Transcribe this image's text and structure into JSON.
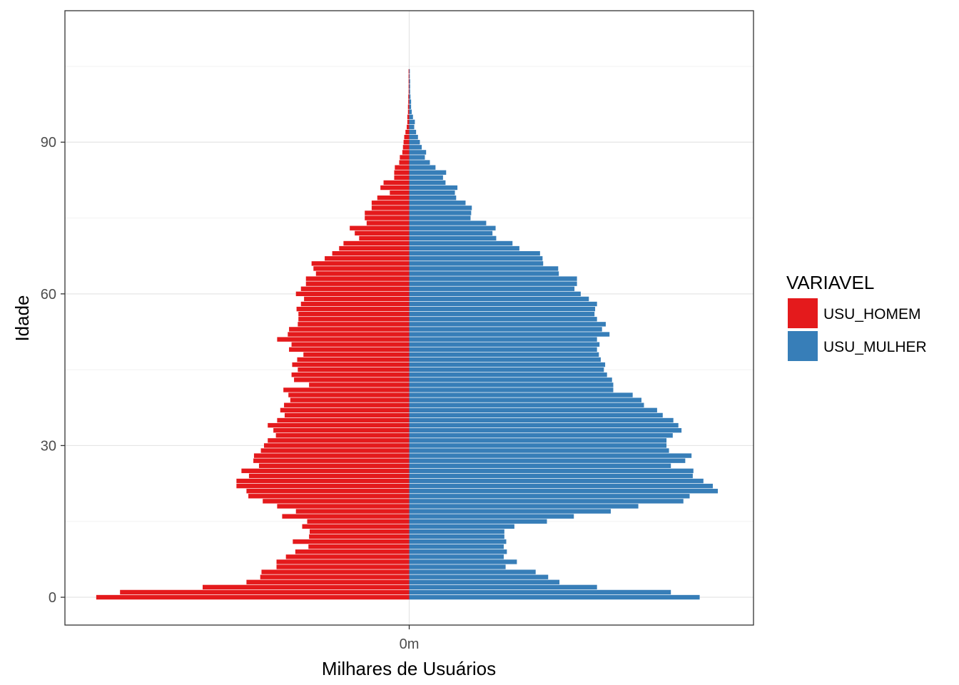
{
  "chart_data": {
    "type": "bar",
    "orientation": "horizontal",
    "layout": "population-pyramid",
    "xlabel": "Milhares de Usuários",
    "ylabel": "Idade",
    "x_tick_labels": [
      "0m"
    ],
    "y_ticks": [
      0,
      30,
      60,
      90
    ],
    "ylim": [
      -5.5,
      116
    ],
    "xlim": [
      -1.1,
      1.1
    ],
    "grid": true,
    "legend": {
      "title": "VARIAVEL",
      "position": "right"
    },
    "ages": [
      0,
      1,
      2,
      3,
      4,
      5,
      6,
      7,
      8,
      9,
      10,
      11,
      12,
      13,
      14,
      15,
      16,
      17,
      18,
      19,
      20,
      21,
      22,
      23,
      24,
      25,
      26,
      27,
      28,
      29,
      30,
      31,
      32,
      33,
      34,
      35,
      36,
      37,
      38,
      39,
      40,
      41,
      42,
      43,
      44,
      45,
      46,
      47,
      48,
      49,
      50,
      51,
      52,
      53,
      54,
      55,
      56,
      57,
      58,
      59,
      60,
      61,
      62,
      63,
      64,
      65,
      66,
      67,
      68,
      69,
      70,
      71,
      72,
      73,
      74,
      75,
      76,
      77,
      78,
      79,
      80,
      81,
      82,
      83,
      84,
      85,
      86,
      87,
      88,
      89,
      90,
      91,
      92,
      93,
      94,
      95,
      96,
      97,
      98,
      99,
      100,
      101,
      102,
      103,
      104,
      105,
      106,
      107,
      108
    ],
    "series": [
      {
        "name": "USU_HOMEM",
        "color": "#E41A1C",
        "values": [
          1.0,
          0.924,
          0.66,
          0.52,
          0.476,
          0.472,
          0.424,
          0.424,
          0.394,
          0.364,
          0.322,
          0.372,
          0.32,
          0.318,
          0.342,
          0.326,
          0.406,
          0.362,
          0.422,
          0.468,
          0.514,
          0.52,
          0.552,
          0.552,
          0.512,
          0.536,
          0.48,
          0.498,
          0.496,
          0.474,
          0.464,
          0.452,
          0.426,
          0.434,
          0.452,
          0.422,
          0.398,
          0.412,
          0.4,
          0.38,
          0.386,
          0.402,
          0.32,
          0.368,
          0.376,
          0.356,
          0.374,
          0.358,
          0.338,
          0.384,
          0.376,
          0.422,
          0.388,
          0.384,
          0.356,
          0.354,
          0.354,
          0.36,
          0.346,
          0.336,
          0.362,
          0.346,
          0.33,
          0.33,
          0.298,
          0.306,
          0.312,
          0.27,
          0.246,
          0.224,
          0.21,
          0.16,
          0.174,
          0.19,
          0.136,
          0.142,
          0.142,
          0.12,
          0.12,
          0.102,
          0.062,
          0.092,
          0.082,
          0.048,
          0.048,
          0.046,
          0.032,
          0.03,
          0.022,
          0.02,
          0.018,
          0.016,
          0.012,
          0.008,
          0.006,
          0.006,
          0.004,
          0.004,
          0.003,
          0.003,
          0.002,
          0.002,
          0.002,
          0.002,
          0.002,
          0.0,
          0.0,
          0.0,
          0.0
        ]
      },
      {
        "name": "USU_MULHER",
        "color": "#377EB8",
        "values": [
          0.928,
          0.836,
          0.6,
          0.48,
          0.444,
          0.404,
          0.308,
          0.344,
          0.302,
          0.312,
          0.302,
          0.31,
          0.304,
          0.304,
          0.336,
          0.44,
          0.526,
          0.644,
          0.732,
          0.876,
          0.896,
          0.986,
          0.97,
          0.94,
          0.906,
          0.908,
          0.836,
          0.882,
          0.902,
          0.83,
          0.822,
          0.822,
          0.842,
          0.87,
          0.86,
          0.844,
          0.81,
          0.792,
          0.75,
          0.742,
          0.714,
          0.652,
          0.652,
          0.648,
          0.632,
          0.622,
          0.626,
          0.612,
          0.606,
          0.6,
          0.608,
          0.6,
          0.64,
          0.616,
          0.628,
          0.6,
          0.592,
          0.594,
          0.6,
          0.574,
          0.548,
          0.528,
          0.536,
          0.536,
          0.478,
          0.476,
          0.428,
          0.426,
          0.418,
          0.352,
          0.33,
          0.278,
          0.266,
          0.276,
          0.246,
          0.196,
          0.198,
          0.2,
          0.18,
          0.15,
          0.146,
          0.154,
          0.116,
          0.108,
          0.118,
          0.084,
          0.066,
          0.05,
          0.054,
          0.04,
          0.034,
          0.028,
          0.022,
          0.016,
          0.018,
          0.012,
          0.008,
          0.006,
          0.006,
          0.004,
          0.003,
          0.003,
          0.003,
          0.002,
          0.002,
          0.0,
          0.0,
          0.0,
          0.0
        ]
      }
    ]
  }
}
